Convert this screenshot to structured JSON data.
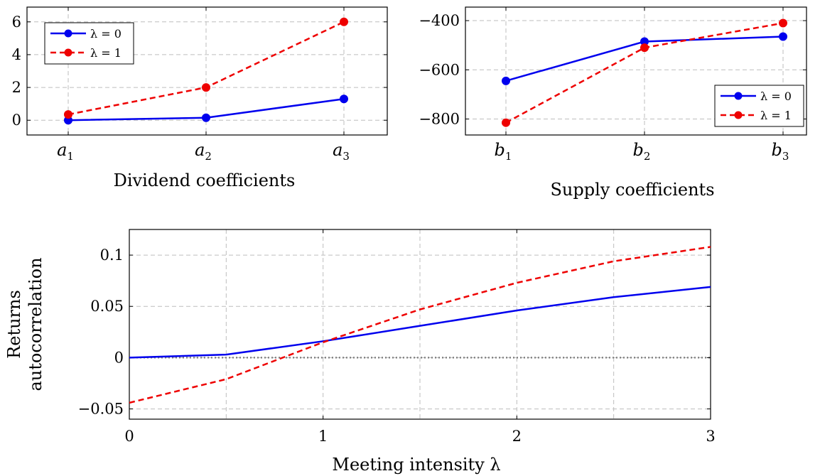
{
  "colors": {
    "series0": "#0000ee",
    "series1": "#ee0000",
    "grid": "#bdbdbd",
    "zero_line": "#7a7a7a"
  },
  "chart_data": [
    {
      "type": "line",
      "xlabel": "Dividend coefficients",
      "ylabel": "",
      "categories": [
        "a1",
        "a2",
        "a3"
      ],
      "category_labels": [
        {
          "base": "a",
          "sub": "1"
        },
        {
          "base": "a",
          "sub": "2"
        },
        {
          "base": "a",
          "sub": "3"
        }
      ],
      "yticks": [
        0,
        2,
        4,
        6
      ],
      "ytick_labels": [
        "0",
        "2",
        "4",
        "6"
      ],
      "ylim": [
        -0.9,
        6.9
      ],
      "grid": true,
      "legend_position": "top-left",
      "series": [
        {
          "name": "λ = 0",
          "values": [
            0.0,
            0.15,
            1.3
          ],
          "marker": "circle",
          "dash": "solid"
        },
        {
          "name": "λ = 1",
          "values": [
            0.35,
            2.0,
            6.0
          ],
          "marker": "circle",
          "dash": "dashed"
        }
      ]
    },
    {
      "type": "line",
      "xlabel": "Supply coefficients",
      "ylabel": "",
      "categories": [
        "b1",
        "b2",
        "b3"
      ],
      "category_labels": [
        {
          "base": "b",
          "sub": "1"
        },
        {
          "base": "b",
          "sub": "2"
        },
        {
          "base": "b",
          "sub": "3"
        }
      ],
      "yticks": [
        -800,
        -600,
        -400
      ],
      "ytick_labels": [
        "−800",
        "−600",
        "−400"
      ],
      "ylim": [
        -865,
        -345
      ],
      "grid": true,
      "legend_position": "bottom-right",
      "series": [
        {
          "name": "λ = 0",
          "values": [
            -645,
            -485,
            -465
          ],
          "marker": "circle",
          "dash": "solid"
        },
        {
          "name": "λ = 1",
          "values": [
            -815,
            -510,
            -410
          ],
          "marker": "circle",
          "dash": "dashed"
        }
      ]
    },
    {
      "type": "line",
      "xlabel": "Meeting intensity λ",
      "ylabel_lines": [
        "Returns",
        "autocorrelation"
      ],
      "x": [
        0,
        0.5,
        1,
        1.5,
        2,
        2.5,
        3
      ],
      "xticks": [
        0,
        1,
        2,
        3
      ],
      "xtick_labels": [
        "0",
        "1",
        "2",
        "3"
      ],
      "xlim": [
        0,
        3
      ],
      "yticks": [
        -0.05,
        0,
        0.05,
        0.1
      ],
      "ytick_labels": [
        "−0.05",
        "0",
        "0.05",
        "0.1"
      ],
      "ylim": [
        -0.06,
        0.125
      ],
      "grid": true,
      "zero_line": true,
      "series": [
        {
          "name": "λ = 0",
          "values": [
            0.0,
            0.003,
            0.016,
            0.031,
            0.046,
            0.059,
            0.069
          ],
          "dash": "solid"
        },
        {
          "name": "λ = 1",
          "values": [
            -0.044,
            -0.021,
            0.015,
            0.047,
            0.073,
            0.094,
            0.108
          ],
          "dash": "dashed"
        }
      ]
    }
  ]
}
